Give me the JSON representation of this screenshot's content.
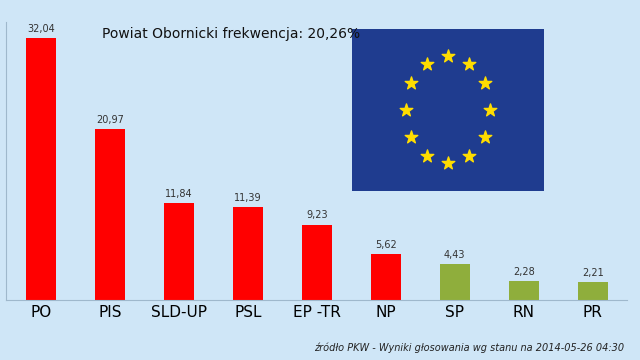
{
  "chart_data": {
    "type": "bar",
    "title": "Powiat Obornicki frekwencja: 20,26%",
    "categories": [
      "PO",
      "PIS",
      "SLD-UP",
      "PSL",
      "EP -TR",
      "NP",
      "SP",
      "RN",
      "PR"
    ],
    "values": [
      32.04,
      20.97,
      11.84,
      11.39,
      9.23,
      5.62,
      4.43,
      2.28,
      2.21
    ],
    "value_labels": [
      "32,04",
      "20,97",
      "11,84",
      "11,39",
      "9,23",
      "5,62",
      "4,43",
      "2,28",
      "2,21"
    ],
    "colors": [
      "#ff0000",
      "#ff0000",
      "#ff0000",
      "#ff0000",
      "#ff0000",
      "#ff0000",
      "#8fae3c",
      "#8fae3c",
      "#8fae3c"
    ],
    "ylim": [
      0,
      34
    ],
    "yticks": [],
    "grid": false,
    "data_labels": true,
    "tick_labels": "x",
    "annotation": "źródło PKW - Wyniki głosowania wg stanu na 2014-05-26 04:30"
  }
}
